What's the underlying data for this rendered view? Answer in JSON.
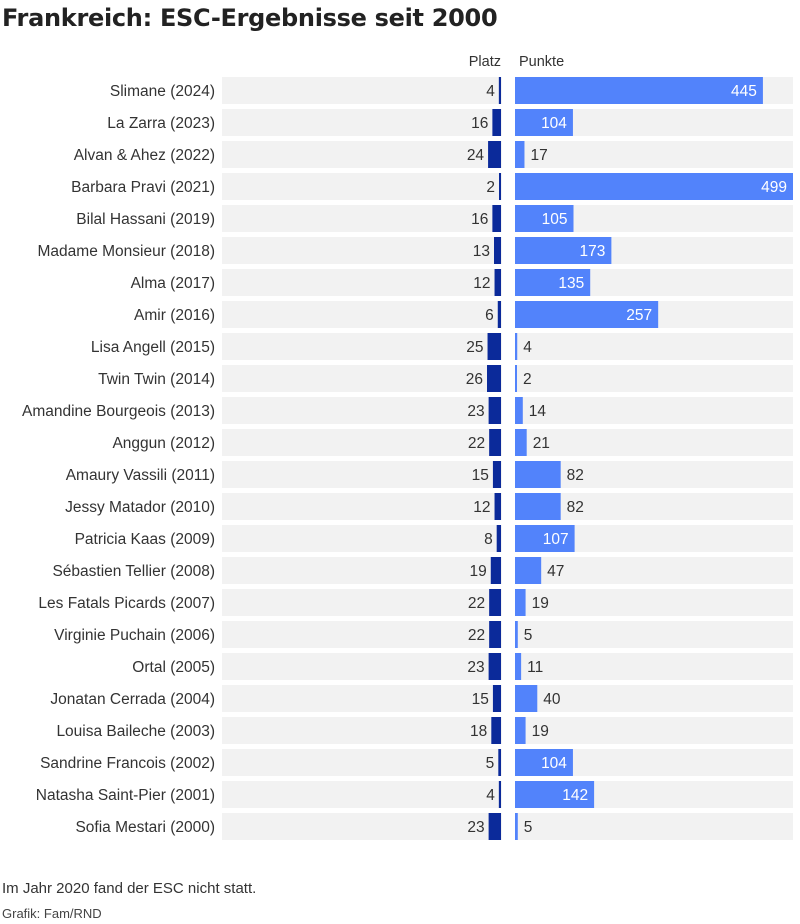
{
  "title": "Frankreich: ESC-Ergebnisse seit 2000",
  "note": "Im Jahr 2020 fand der ESC nicht statt.",
  "source": "Grafik: Fam/RND",
  "colors": {
    "row_background": "#f2f2f2",
    "platz_bar": "#0b2a9a",
    "punkte_bar": "#5283fb",
    "label_inside": "#ffffff",
    "label_outside": "#333333"
  },
  "chart_data": {
    "type": "bar",
    "title": "Frankreich: ESC-Ergebnisse seit 2000",
    "orientation": "horizontal",
    "columns": [
      "Platz",
      "Punkte"
    ],
    "categories": [
      "Slimane (2024)",
      "La Zarra (2023)",
      "Alvan & Ahez (2022)",
      "Barbara Pravi (2021)",
      "Bilal Hassani (2019)",
      "Madame Monsieur (2018)",
      "Alma (2017)",
      "Amir (2016)",
      "Lisa Angell (2015)",
      "Twin Twin (2014)",
      "Amandine Bourgeois (2013)",
      "Anggun (2012)",
      "Amaury Vassili (2011)",
      "Jessy Matador (2010)",
      "Patricia Kaas (2009)",
      "Sébastien Tellier (2008)",
      "Les Fatals Picards (2007)",
      "Virginie Puchain (2006)",
      "Ortal (2005)",
      "Jonatan Cerrada (2004)",
      "Louisa Baileche (2003)",
      "Sandrine Francois (2002)",
      "Natasha Saint-Pier (2001)",
      "Sofia Mestari (2000)"
    ],
    "series": [
      {
        "name": "Platz",
        "values": [
          4,
          16,
          24,
          2,
          16,
          13,
          12,
          6,
          25,
          26,
          23,
          22,
          15,
          12,
          8,
          19,
          22,
          22,
          23,
          15,
          18,
          5,
          4,
          23
        ],
        "range": [
          0,
          26
        ]
      },
      {
        "name": "Punkte",
        "values": [
          445,
          104,
          17,
          499,
          105,
          173,
          135,
          257,
          4,
          2,
          14,
          21,
          82,
          82,
          107,
          47,
          19,
          5,
          11,
          40,
          19,
          104,
          142,
          5
        ],
        "range": [
          0,
          499
        ]
      }
    ],
    "legend": "none",
    "grid": false
  }
}
